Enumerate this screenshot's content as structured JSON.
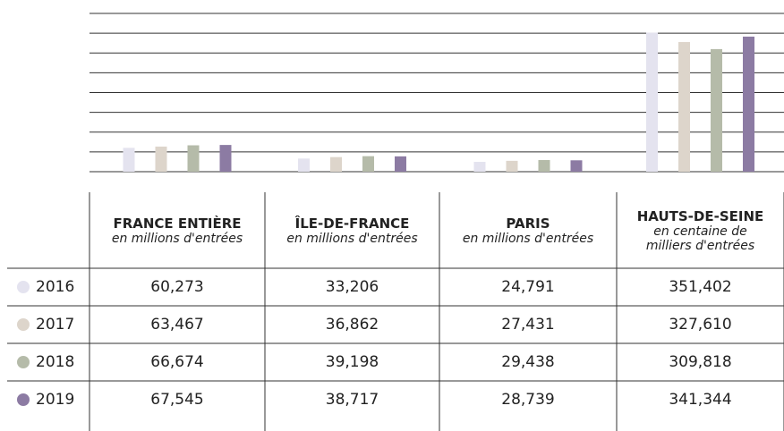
{
  "chart_data": {
    "type": "bar",
    "categories": [
      "FRANCE ENTIÈRE",
      "ÎLE-DE-FRANCE",
      "PARIS",
      "HAUTS-DE-SEINE"
    ],
    "units": [
      "en millions d'entrées",
      "en millions d'entrées",
      "en millions d'entrées",
      "en centaine de milliers d'entrées"
    ],
    "series": [
      {
        "name": "2016",
        "color": "#e4e3ef",
        "values": [
          60.273,
          33.206,
          24.791,
          351.402
        ],
        "value_labels": [
          "60,273",
          "33,206",
          "24,791",
          "351,402"
        ]
      },
      {
        "name": "2017",
        "color": "#ddd5cb",
        "values": [
          63.467,
          36.862,
          27.431,
          327.61
        ],
        "value_labels": [
          "63,467",
          "36,862",
          "27,431",
          "327,610"
        ]
      },
      {
        "name": "2018",
        "color": "#b5bba9",
        "values": [
          66.674,
          39.198,
          29.438,
          309.818
        ],
        "value_labels": [
          "66,674",
          "39,198",
          "29,438",
          "309,818"
        ]
      },
      {
        "name": "2019",
        "color": "#8c7ba3",
        "values": [
          67.545,
          38.717,
          28.739,
          341.344
        ],
        "value_labels": [
          "67,545",
          "38,717",
          "28,739",
          "341,344"
        ]
      }
    ],
    "ylim": [
      0,
      400
    ],
    "yticks": [
      0,
      50,
      100,
      150,
      200,
      250,
      300,
      350,
      400
    ],
    "grid": true
  }
}
